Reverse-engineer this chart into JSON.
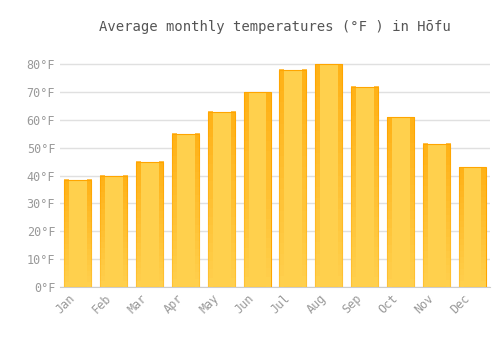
{
  "title": "Average monthly temperatures (°F ) in Hōfu",
  "months": [
    "Jan",
    "Feb",
    "Mar",
    "Apr",
    "May",
    "Jun",
    "Jul",
    "Aug",
    "Sep",
    "Oct",
    "Nov",
    "Dec"
  ],
  "values": [
    38.5,
    40.0,
    45.0,
    55.0,
    63.0,
    70.0,
    78.0,
    80.0,
    72.0,
    61.0,
    51.5,
    43.0
  ],
  "bar_color_center": "#FFD04D",
  "bar_color_edge": "#FFA500",
  "background_color": "#ffffff",
  "grid_color": "#e0e0e0",
  "text_color": "#999999",
  "ylim": [
    0,
    88
  ],
  "yticks": [
    0,
    10,
    20,
    30,
    40,
    50,
    60,
    70,
    80
  ],
  "title_fontsize": 10,
  "tick_fontsize": 8.5
}
